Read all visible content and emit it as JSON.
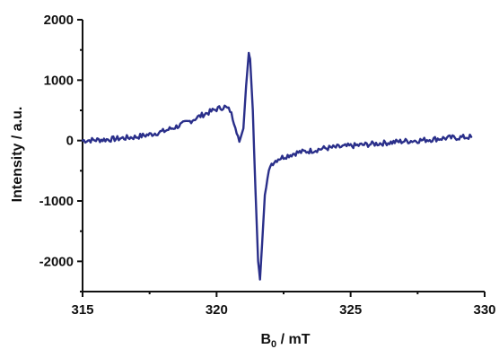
{
  "chart_data": {
    "type": "line",
    "xlabel": "B",
    "xlabel_sub": "0",
    "xlabel_unit": " / mT",
    "ylabel": "Intensity / a.u.",
    "xlim": [
      315,
      330
    ],
    "ylim": [
      -2500,
      2000
    ],
    "xticks": [
      315,
      320,
      325,
      330
    ],
    "yticks": [
      2000,
      1000,
      0,
      -1000,
      -2000
    ],
    "xtick_labels": [
      "315",
      "320",
      "325",
      "330"
    ],
    "ytick_labels": [
      "2000",
      "1000",
      "0",
      "-1000",
      "-2000"
    ],
    "grid": false,
    "series": [
      {
        "color": "#2a2f8a",
        "x": [
          315.0,
          315.5,
          316.0,
          316.5,
          317.0,
          317.5,
          318.0,
          318.5,
          319.0,
          319.5,
          320.0,
          320.3,
          320.5,
          320.7,
          320.85,
          321.0,
          321.1,
          321.2,
          321.25,
          321.35,
          321.45,
          321.55,
          321.62,
          321.7,
          321.8,
          322.0,
          322.3,
          322.7,
          323.0,
          323.5,
          324.0,
          324.5,
          325.0,
          325.5,
          326.0,
          326.5,
          327.0,
          327.5,
          328.0,
          328.5,
          329.0,
          329.5
        ],
        "y": [
          0,
          10,
          20,
          40,
          60,
          100,
          150,
          230,
          320,
          430,
          520,
          560,
          500,
          250,
          -20,
          200,
          900,
          1450,
          1350,
          500,
          -800,
          -2000,
          -2300,
          -1700,
          -900,
          -400,
          -300,
          -240,
          -200,
          -170,
          -130,
          -110,
          -90,
          -70,
          -50,
          -30,
          -10,
          0,
          20,
          40,
          50,
          60
        ]
      }
    ]
  }
}
